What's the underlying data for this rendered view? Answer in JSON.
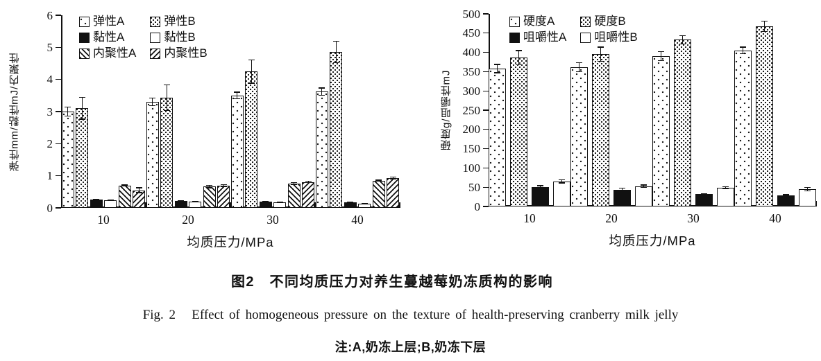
{
  "figure": {
    "caption_zh": "图2　不同均质压力对养生蔓越莓奶冻质构的影响",
    "caption_en": "Fig. 2   Effect of homogeneous pressure on the texture of health-preserving cranberry milk jelly",
    "note": "注:A,奶冻上层;B,奶冻下层"
  },
  "chart_data": [
    {
      "type": "bar",
      "title": "",
      "xlabel": "均质压力/MPa",
      "ylabel": "弹性mm/黏性mJ/内聚性",
      "categories": [
        "10",
        "20",
        "30",
        "40"
      ],
      "ylim": [
        0,
        6
      ],
      "yticks": [
        0,
        1,
        2,
        3,
        4,
        5,
        6
      ],
      "grid": false,
      "legend_position": "top-left-inside",
      "legend_columns": 2,
      "series": [
        {
          "name": "弹性A",
          "pattern": "dots-sparse",
          "values": [
            3.0,
            3.3,
            3.5,
            3.62
          ],
          "errors": [
            0.15,
            0.13,
            0.12,
            0.13
          ]
        },
        {
          "name": "弹性B",
          "pattern": "dots-dense",
          "values": [
            3.1,
            3.43,
            4.25,
            4.85
          ],
          "errors": [
            0.35,
            0.42,
            0.38,
            0.35
          ]
        },
        {
          "name": "黏性A",
          "pattern": "solid-black",
          "values": [
            0.25,
            0.22,
            0.2,
            0.17
          ],
          "errors": [
            0.03,
            0.02,
            0.02,
            0.02
          ]
        },
        {
          "name": "黏性B",
          "pattern": "solid-white",
          "values": [
            0.23,
            0.2,
            0.17,
            0.14
          ],
          "errors": [
            0.02,
            0.02,
            0.02,
            0.02
          ]
        },
        {
          "name": "内聚性A",
          "pattern": "hatch-backslash",
          "values": [
            0.7,
            0.66,
            0.76,
            0.85
          ],
          "errors": [
            0.03,
            0.05,
            0.04,
            0.03
          ]
        },
        {
          "name": "内聚性B",
          "pattern": "hatch-slash",
          "values": [
            0.55,
            0.69,
            0.81,
            0.93
          ],
          "errors": [
            0.09,
            0.05,
            0.04,
            0.05
          ]
        }
      ]
    },
    {
      "type": "bar",
      "title": "",
      "xlabel": "均质压力/MPa",
      "ylabel": "硬度g/咀嚼性mJ",
      "categories": [
        "10",
        "20",
        "30",
        "40"
      ],
      "ylim": [
        0,
        500
      ],
      "yticks": [
        0,
        50,
        100,
        150,
        200,
        250,
        300,
        350,
        400,
        450,
        500
      ],
      "grid": false,
      "legend_position": "top-left-inside",
      "legend_columns": 2,
      "series": [
        {
          "name": "硬度A",
          "pattern": "dots-sparse",
          "values": [
            358,
            362,
            390,
            405
          ],
          "errors": [
            12,
            13,
            13,
            10
          ]
        },
        {
          "name": "硬度B",
          "pattern": "dots-dense",
          "values": [
            386,
            395,
            433,
            468
          ],
          "errors": [
            20,
            20,
            12,
            15
          ]
        },
        {
          "name": "咀嚼性A",
          "pattern": "solid-black",
          "values": [
            50,
            44,
            32,
            28
          ],
          "errors": [
            5,
            5,
            3,
            4
          ]
        },
        {
          "name": "咀嚼性B",
          "pattern": "solid-white",
          "values": [
            65,
            53,
            48,
            45
          ],
          "errors": [
            5,
            4,
            4,
            6
          ]
        }
      ]
    }
  ]
}
